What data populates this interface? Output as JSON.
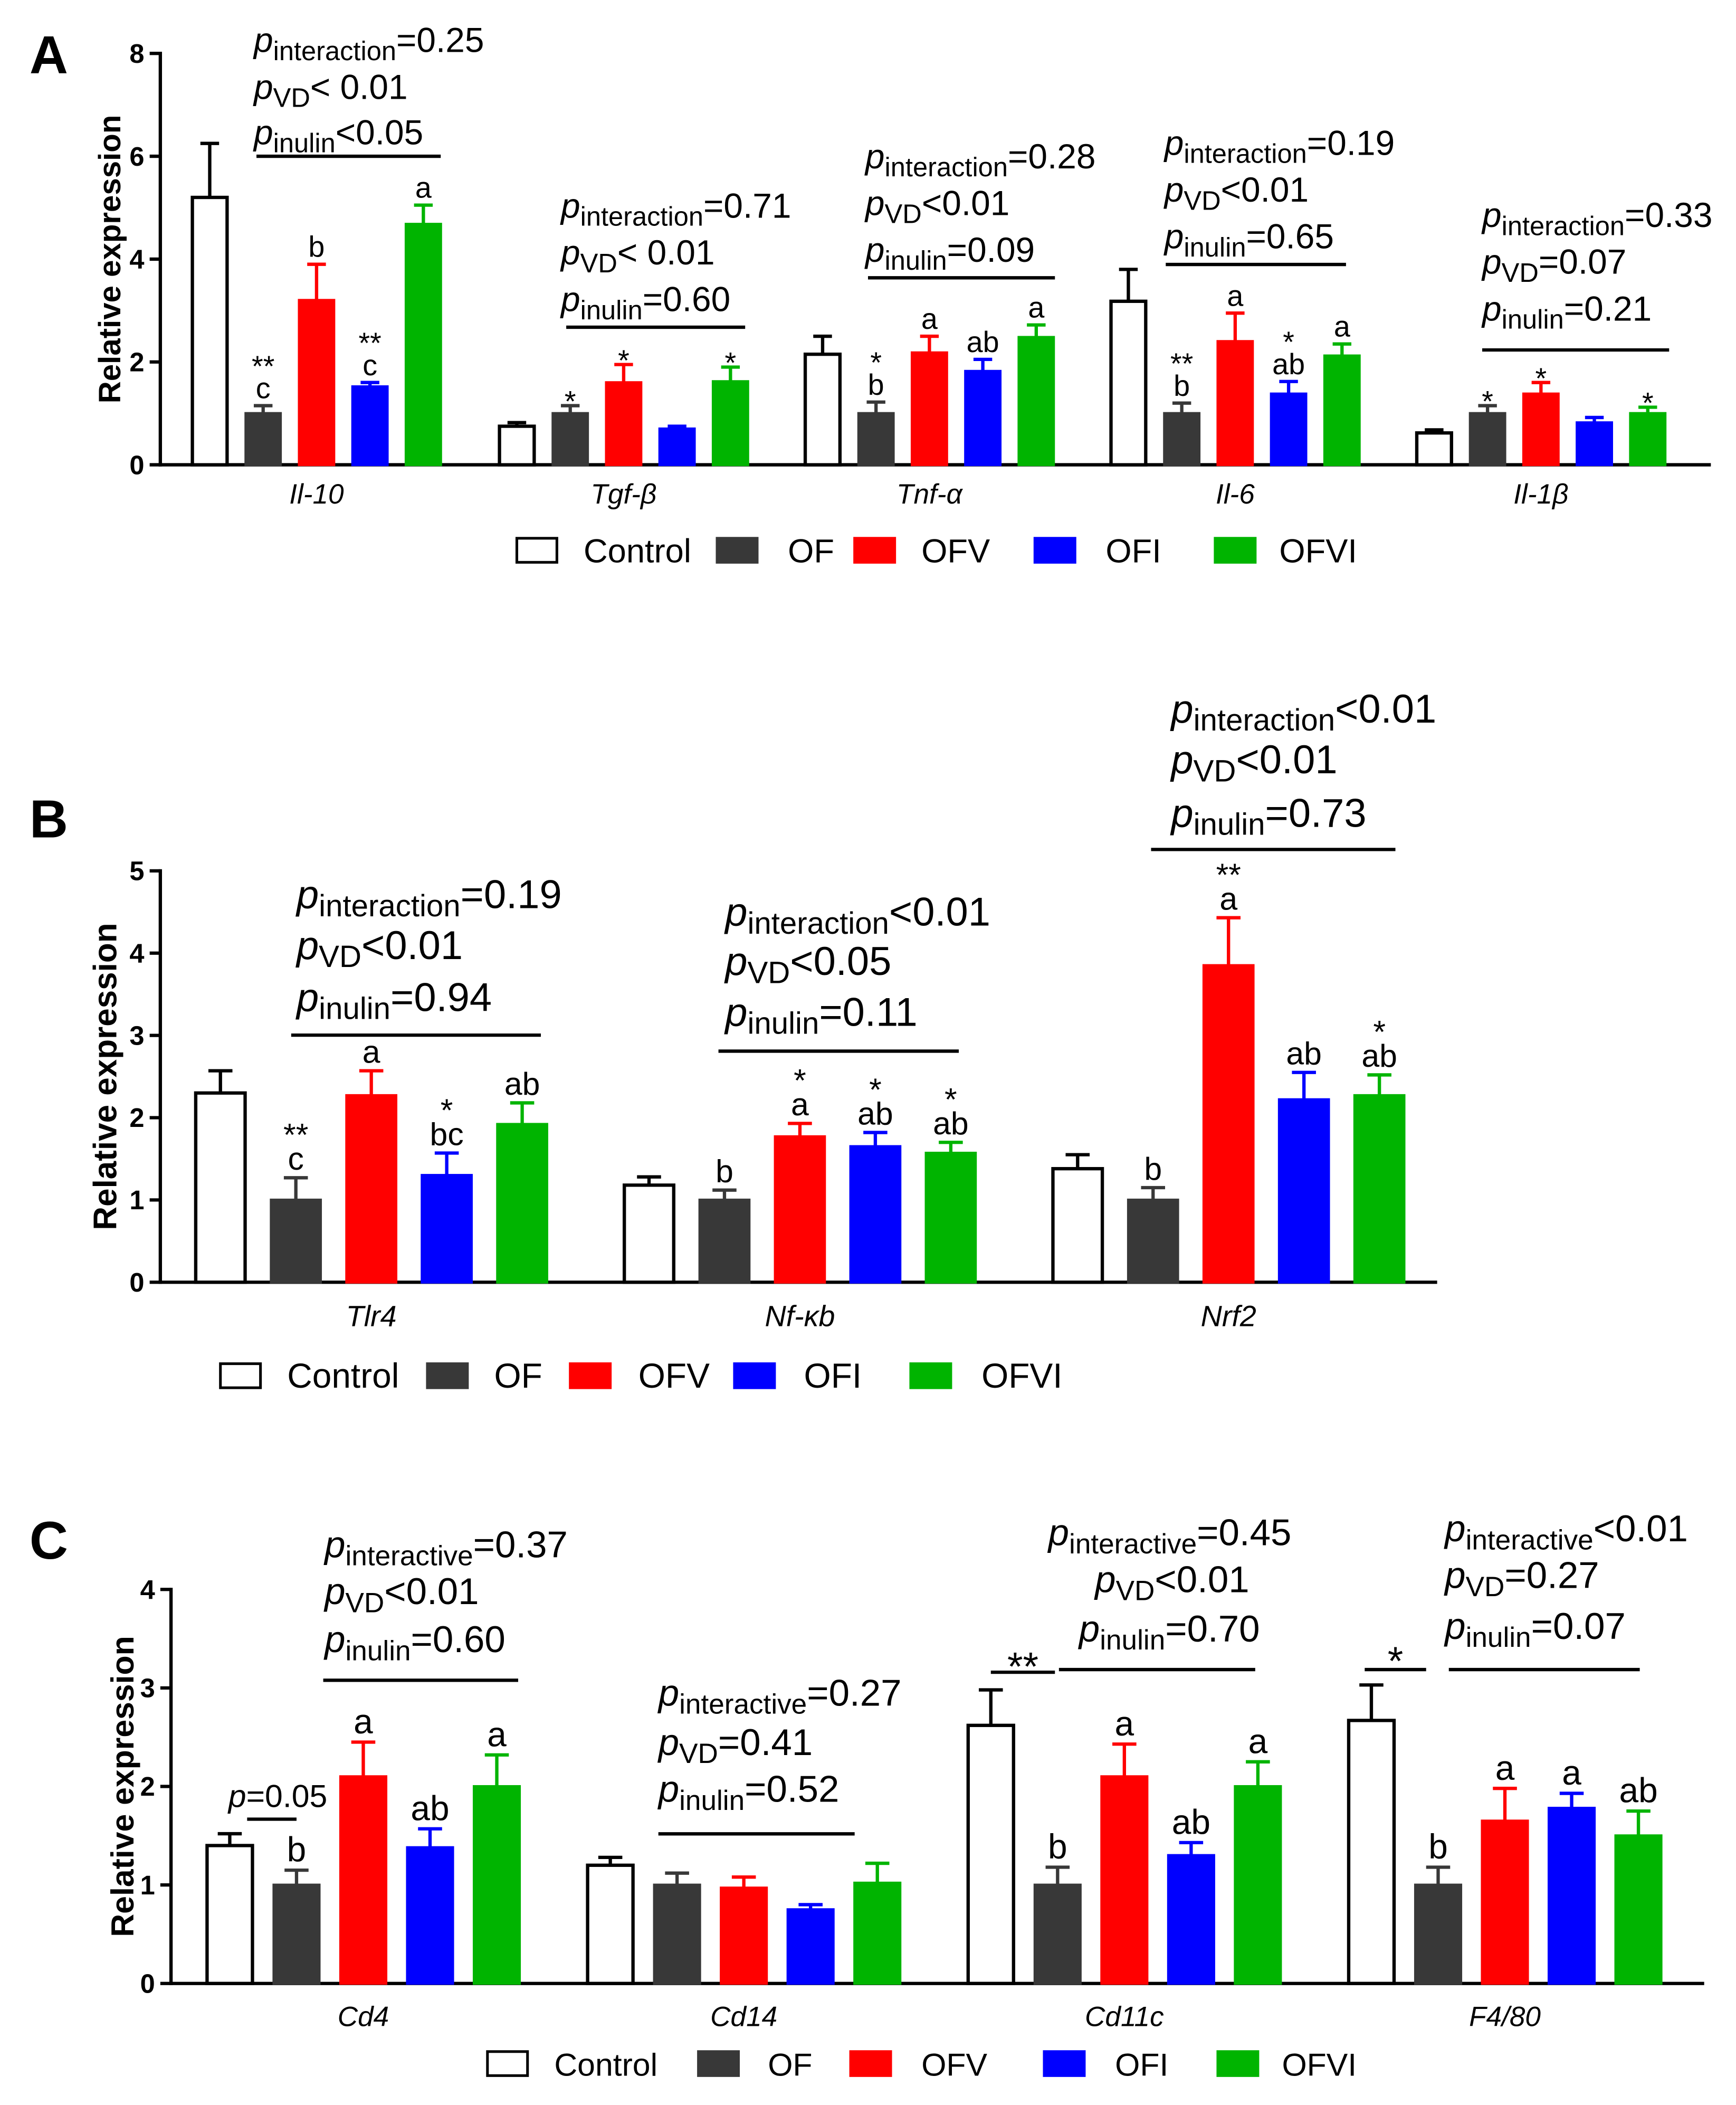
{
  "chart_data": [
    {
      "panel": "A",
      "type": "bar",
      "ylabel": "Relative expression",
      "ylim": [
        0,
        8
      ],
      "yticks": [
        0,
        2,
        4,
        6,
        8
      ],
      "categories": [
        "Il-10",
        "Tgf-β",
        "Tnf-α",
        "Il-6",
        "Il-1β"
      ],
      "series": [
        {
          "name": "Control",
          "color": "#ffffff",
          "values": [
            5.2,
            0.75,
            2.15,
            3.18,
            0.62
          ],
          "errors": [
            1.05,
            0.07,
            0.35,
            0.62,
            0.06
          ]
        },
        {
          "name": "OF",
          "color": "#383838",
          "values": [
            1.0,
            1.0,
            1.0,
            1.0,
            1.0
          ],
          "errors": [
            0.15,
            0.15,
            0.22,
            0.2,
            0.15
          ]
        },
        {
          "name": "OFV",
          "color": "#ff0000",
          "values": [
            3.2,
            1.6,
            2.18,
            2.4,
            1.38
          ],
          "errors": [
            0.7,
            0.35,
            0.32,
            0.55,
            0.22
          ]
        },
        {
          "name": "OFI",
          "color": "#0000ff",
          "values": [
            1.52,
            0.7,
            1.82,
            1.38,
            0.82
          ],
          "errors": [
            0.08,
            0.05,
            0.23,
            0.24,
            0.1
          ]
        },
        {
          "name": "OFVI",
          "color": "#00b400",
          "values": [
            4.68,
            1.62,
            2.48,
            2.12,
            1.0
          ],
          "errors": [
            0.37,
            0.28,
            0.24,
            0.23,
            0.12
          ]
        }
      ],
      "annotations": [
        [
          [],
          [
            "**",
            "c"
          ],
          [
            "b"
          ],
          [
            "**",
            "c"
          ],
          [
            "a"
          ]
        ],
        [
          [],
          [
            "*"
          ],
          [
            "*"
          ],
          [],
          [
            "*"
          ]
        ],
        [
          [],
          [
            "*",
            "b"
          ],
          [
            "a"
          ],
          [
            "ab"
          ],
          [
            "a"
          ]
        ],
        [
          [],
          [
            "**",
            "b"
          ],
          [
            "a"
          ],
          [
            "*",
            "ab"
          ],
          [
            "a"
          ]
        ],
        [
          [],
          [
            "*"
          ],
          [
            "*"
          ],
          [],
          [
            "*"
          ]
        ]
      ],
      "stats": [
        {
          "lines": [
            {
              "p": "p",
              "sub": "interaction",
              "rest": "=0.25"
            },
            {
              "p": "p",
              "sub": "VD",
              "rest": "< 0.01"
            },
            {
              "p": "p",
              "sub": "inulin",
              "rest": "<0.05"
            }
          ]
        },
        {
          "lines": [
            {
              "p": "p",
              "sub": "interaction",
              "rest": "=0.71"
            },
            {
              "p": "p",
              "sub": "VD",
              "rest": "< 0.01"
            },
            {
              "p": "p",
              "sub": "inulin",
              "rest": "=0.60"
            }
          ]
        },
        {
          "lines": [
            {
              "p": "p",
              "sub": "interaction",
              "rest": "=0.28"
            },
            {
              "p": "p",
              "sub": "VD",
              "rest": "<0.01"
            },
            {
              "p": "p",
              "sub": "inulin",
              "rest": "=0.09"
            }
          ]
        },
        {
          "lines": [
            {
              "p": "p",
              "sub": "interaction",
              "rest": "=0.19"
            },
            {
              "p": "p",
              "sub": "VD",
              "rest": "<0.01"
            },
            {
              "p": "p",
              "sub": "inulin",
              "rest": "=0.65"
            }
          ]
        },
        {
          "lines": [
            {
              "p": "p",
              "sub": "interaction",
              "rest": "=0.33"
            },
            {
              "p": "p",
              "sub": "VD",
              "rest": "=0.07"
            },
            {
              "p": "p",
              "sub": "inulin",
              "rest": "=0.21"
            }
          ]
        }
      ],
      "brackets": []
    },
    {
      "panel": "B",
      "type": "bar",
      "ylabel": "Relative expression",
      "ylim": [
        0,
        5
      ],
      "yticks": [
        0,
        1,
        2,
        3,
        4,
        5
      ],
      "categories": [
        "Tlr4",
        "Nf-κb",
        "Nrf2"
      ],
      "series": [
        {
          "name": "Control",
          "color": "#ffffff",
          "values": [
            2.3,
            1.18,
            1.38
          ],
          "errors": [
            0.27,
            0.1,
            0.17
          ]
        },
        {
          "name": "OF",
          "color": "#383838",
          "values": [
            1.0,
            1.0,
            1.0
          ],
          "errors": [
            0.27,
            0.12,
            0.15
          ]
        },
        {
          "name": "OFV",
          "color": "#ff0000",
          "values": [
            2.27,
            1.77,
            3.85
          ],
          "errors": [
            0.3,
            0.16,
            0.58
          ]
        },
        {
          "name": "OFI",
          "color": "#0000ff",
          "values": [
            1.3,
            1.65,
            2.22
          ],
          "errors": [
            0.27,
            0.17,
            0.33
          ]
        },
        {
          "name": "OFVI",
          "color": "#00b400",
          "values": [
            1.92,
            1.57,
            2.27
          ],
          "errors": [
            0.26,
            0.13,
            0.25
          ]
        }
      ],
      "annotations": [
        [
          [],
          [
            "**",
            "c"
          ],
          [
            "a"
          ],
          [
            "*",
            "bc"
          ],
          [
            "ab"
          ]
        ],
        [
          [],
          [
            "b"
          ],
          [
            "*",
            "a"
          ],
          [
            "*",
            "ab"
          ],
          [
            "*",
            "ab"
          ]
        ],
        [
          [],
          [
            "b"
          ],
          [
            "**",
            "a"
          ],
          [
            "ab"
          ],
          [
            "*",
            "ab"
          ]
        ]
      ],
      "stats": [
        {
          "lines": [
            {
              "p": "p",
              "sub": "interaction",
              "rest": "=0.19"
            },
            {
              "p": "p",
              "sub": "VD",
              "rest": "<0.01"
            },
            {
              "p": "p",
              "sub": "inulin",
              "rest": "=0.94"
            }
          ]
        },
        {
          "lines": [
            {
              "p": "p",
              "sub": "interaction",
              "rest": "<0.01"
            },
            {
              "p": "p",
              "sub": "VD",
              "rest": "<0.05"
            },
            {
              "p": "p",
              "sub": "inulin",
              "rest": "=0.11"
            }
          ]
        },
        {
          "lines": [
            {
              "p": "p",
              "sub": "interaction",
              "rest": "<0.01"
            },
            {
              "p": "p",
              "sub": "VD",
              "rest": "<0.01"
            },
            {
              "p": "p",
              "sub": "inulin",
              "rest": "=0.73"
            }
          ]
        }
      ],
      "brackets": []
    },
    {
      "panel": "C",
      "type": "bar",
      "ylabel": "Relative expression",
      "ylim": [
        0,
        4
      ],
      "yticks": [
        0,
        1,
        2,
        3,
        4
      ],
      "categories": [
        "Cd4",
        "Cd14",
        "Cd11c",
        "F4/80"
      ],
      "series": [
        {
          "name": "Control",
          "color": "#ffffff",
          "values": [
            1.4,
            1.2,
            2.62,
            2.67
          ],
          "errors": [
            0.12,
            0.08,
            0.36,
            0.36
          ]
        },
        {
          "name": "OF",
          "color": "#383838",
          "values": [
            1.0,
            1.0,
            1.0,
            1.0
          ],
          "errors": [
            0.15,
            0.12,
            0.18,
            0.18
          ]
        },
        {
          "name": "OFV",
          "color": "#ff0000",
          "values": [
            2.1,
            0.97,
            2.1,
            1.65
          ],
          "errors": [
            0.35,
            0.11,
            0.33,
            0.33
          ]
        },
        {
          "name": "OFI",
          "color": "#0000ff",
          "values": [
            1.38,
            0.75,
            1.3,
            1.78
          ],
          "errors": [
            0.19,
            0.05,
            0.13,
            0.15
          ]
        },
        {
          "name": "OFVI",
          "color": "#00b400",
          "values": [
            2.0,
            1.02,
            2.0,
            1.5
          ],
          "errors": [
            0.32,
            0.2,
            0.25,
            0.25
          ]
        }
      ],
      "annotations": [
        [
          [],
          [
            "b"
          ],
          [
            "a"
          ],
          [
            "ab"
          ],
          [
            "a"
          ]
        ],
        [
          [],
          [],
          [],
          [],
          []
        ],
        [
          [],
          [
            "b"
          ],
          [
            "a"
          ],
          [
            "ab"
          ],
          [
            "a"
          ]
        ],
        [
          [],
          [
            "b"
          ],
          [
            "a"
          ],
          [
            "a"
          ],
          [
            "ab"
          ]
        ]
      ],
      "stats": [
        {
          "lines": [
            {
              "p": "p",
              "sub": "interactive",
              "rest": "=0.37"
            },
            {
              "p": "p",
              "sub": "VD",
              "rest": "<0.01"
            },
            {
              "p": "p",
              "sub": "inulin",
              "rest": "=0.60"
            }
          ]
        },
        {
          "lines": [
            {
              "p": "p",
              "sub": "interactive",
              "rest": "=0.27"
            },
            {
              "p": "p",
              "sub": "VD",
              "rest": "=0.41"
            },
            {
              "p": "p",
              "sub": "inulin",
              "rest": "=0.52"
            }
          ]
        },
        {
          "lines": [
            {
              "p": "p",
              "sub": "interactive",
              "rest": "=0.45"
            },
            {
              "p": "p",
              "sub": "VD",
              "rest": "<0.01"
            },
            {
              "p": "p",
              "sub": "inulin",
              "rest": "=0.70"
            }
          ]
        },
        {
          "lines": [
            {
              "p": "p",
              "sub": "interactive",
              "rest": "<0.01"
            },
            {
              "p": "p",
              "sub": "VD",
              "rest": "=0.27"
            },
            {
              "p": "p",
              "sub": "inulin",
              "rest": "=0.07"
            }
          ]
        }
      ],
      "brackets": [
        {
          "p": "p",
          "text": "=0.05"
        },
        null,
        {
          "text": "**"
        },
        {
          "text": "*"
        }
      ]
    }
  ]
}
